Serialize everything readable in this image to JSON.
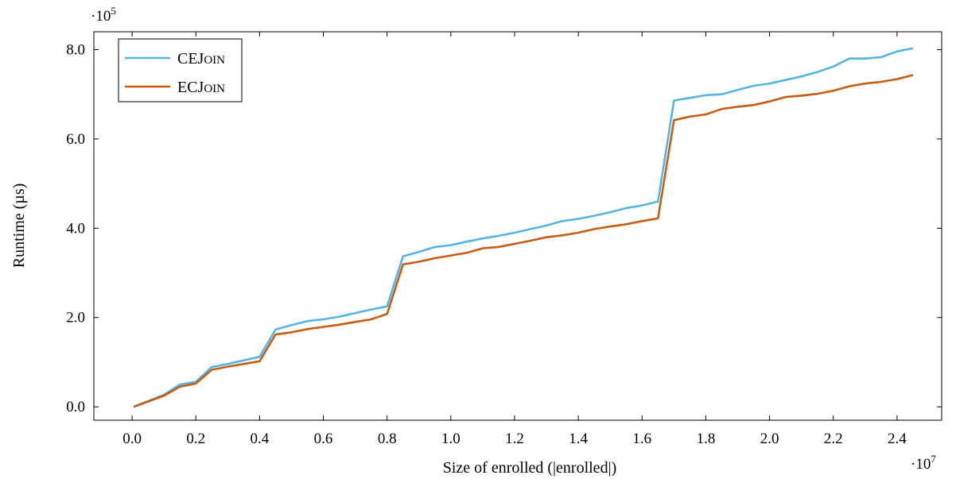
{
  "chart_data": {
    "type": "line",
    "xlabel": "Size of enrolled (|enrolled|)",
    "ylabel": "Runtime (µs)",
    "x_multiplier_label": "·10",
    "x_multiplier_exp": "7",
    "y_multiplier_label": "·10",
    "y_multiplier_exp": "5",
    "xlim": [
      -0.12,
      2.54
    ],
    "ylim": [
      -0.3,
      8.4
    ],
    "x_ticks": [
      0.0,
      0.2,
      0.4,
      0.6,
      0.8,
      1.0,
      1.2,
      1.4,
      1.6,
      1.8,
      2.0,
      2.2,
      2.4
    ],
    "x_tick_labels": [
      "0.0",
      "0.2",
      "0.4",
      "0.6",
      "0.8",
      "1.0",
      "1.2",
      "1.4",
      "1.6",
      "1.8",
      "2.0",
      "2.2",
      "2.4"
    ],
    "y_ticks": [
      0.0,
      2.0,
      4.0,
      6.0,
      8.0
    ],
    "y_tick_labels": [
      "0.0",
      "2.0",
      "4.0",
      "6.0",
      "8.0"
    ],
    "legend_position": "top-left",
    "grid": false,
    "x": [
      0.005,
      0.1,
      0.15,
      0.2,
      0.25,
      0.3,
      0.35,
      0.4,
      0.45,
      0.5,
      0.55,
      0.6,
      0.65,
      0.7,
      0.75,
      0.8,
      0.85,
      0.9,
      0.95,
      1.0,
      1.05,
      1.1,
      1.15,
      1.2,
      1.25,
      1.3,
      1.35,
      1.4,
      1.45,
      1.5,
      1.55,
      1.6,
      1.65,
      1.7,
      1.75,
      1.8,
      1.85,
      1.9,
      1.95,
      2.0,
      2.05,
      2.1,
      2.15,
      2.2,
      2.25,
      2.3,
      2.35,
      2.4,
      2.45
    ],
    "series": [
      {
        "name": "CEJoin",
        "name_main": "CEJ",
        "name_sc": "OIN",
        "color": "#56b4e3",
        "values": [
          0.0,
          0.27,
          0.5,
          0.56,
          0.89,
          0.96,
          1.04,
          1.12,
          1.73,
          1.83,
          1.92,
          1.96,
          2.02,
          2.1,
          2.18,
          2.25,
          3.37,
          3.47,
          3.58,
          3.62,
          3.7,
          3.77,
          3.83,
          3.9,
          3.98,
          4.06,
          4.16,
          4.21,
          4.28,
          4.36,
          4.45,
          4.51,
          4.6,
          6.86,
          6.92,
          6.98,
          7.0,
          7.1,
          7.19,
          7.24,
          7.32,
          7.4,
          7.5,
          7.62,
          7.8,
          7.8,
          7.83,
          7.96,
          8.03
        ]
      },
      {
        "name": "ECJoin",
        "name_main": "ECJ",
        "name_sc": "OIN",
        "color": "#c85c10",
        "values": [
          0.0,
          0.25,
          0.45,
          0.52,
          0.83,
          0.9,
          0.96,
          1.02,
          1.62,
          1.67,
          1.74,
          1.79,
          1.84,
          1.9,
          1.96,
          2.08,
          3.19,
          3.25,
          3.33,
          3.39,
          3.45,
          3.55,
          3.58,
          3.65,
          3.72,
          3.8,
          3.84,
          3.9,
          3.98,
          4.04,
          4.09,
          4.16,
          4.22,
          6.42,
          6.5,
          6.55,
          6.67,
          6.72,
          6.76,
          6.84,
          6.94,
          6.97,
          7.01,
          7.08,
          7.18,
          7.24,
          7.28,
          7.34,
          7.43
        ]
      }
    ]
  }
}
